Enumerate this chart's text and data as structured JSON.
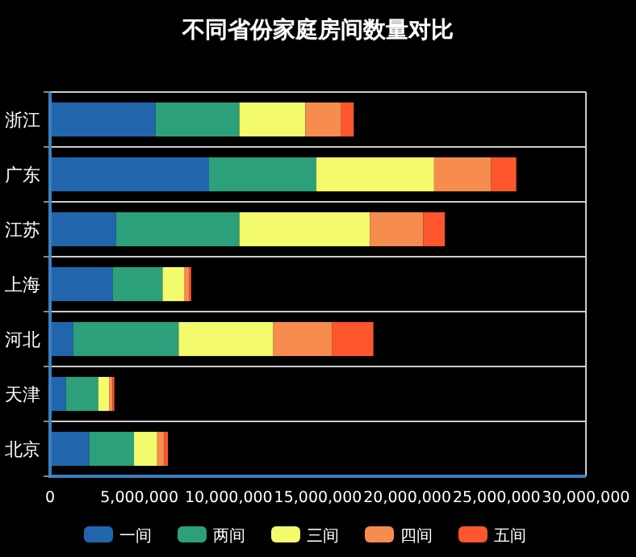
{
  "chart_data": {
    "type": "bar",
    "orientation": "horizontal",
    "stacked": true,
    "title": "不同省份家庭房间数量对比",
    "categories": [
      "浙江",
      "广东",
      "江苏",
      "上海",
      "河北",
      "天津",
      "北京"
    ],
    "series": [
      {
        "name": "一间",
        "color": "#2166ac",
        "values": [
          5900000,
          8900000,
          3700000,
          3500000,
          1300000,
          900000,
          2200000
        ]
      },
      {
        "name": "两间",
        "color": "#2ca07b",
        "values": [
          4700000,
          6000000,
          6900000,
          2800000,
          5900000,
          1800000,
          2500000
        ]
      },
      {
        "name": "三间",
        "color": "#f3fa6b",
        "values": [
          3700000,
          6600000,
          7300000,
          1200000,
          5300000,
          600000,
          1300000
        ]
      },
      {
        "name": "四间",
        "color": "#f78c4f",
        "values": [
          2000000,
          3200000,
          3000000,
          300000,
          3300000,
          200000,
          400000
        ]
      },
      {
        "name": "五间",
        "color": "#fe562d",
        "values": [
          700000,
          1400000,
          1200000,
          100000,
          2300000,
          100000,
          200000
        ]
      }
    ],
    "xlim": [
      0,
      30000000
    ],
    "xticks": [
      {
        "value": 0,
        "label": "0"
      },
      {
        "value": 5000000,
        "label": "5,000,000"
      },
      {
        "value": 10000000,
        "label": "10,000,000"
      },
      {
        "value": 15000000,
        "label": "15,000,000"
      },
      {
        "value": 20000000,
        "label": "20,000,000"
      },
      {
        "value": 25000000,
        "label": "25,000,000"
      },
      {
        "value": 30000000,
        "label": "30,000,000"
      }
    ],
    "grid": "y",
    "legend": "bottom"
  }
}
